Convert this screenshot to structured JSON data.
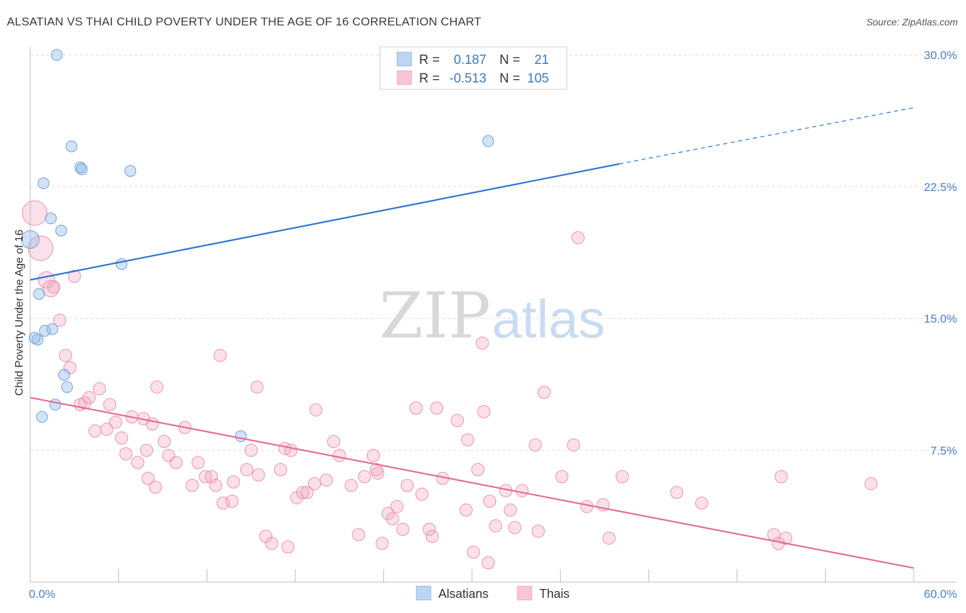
{
  "title": "ALSATIAN VS THAI CHILD POVERTY UNDER THE AGE OF 16 CORRELATION CHART",
  "source": "Source: ZipAtlas.com",
  "watermark": {
    "zip": "ZIP",
    "atlas": "atlas"
  },
  "legend": {
    "rows": [
      {
        "r_label": "R =",
        "r_value": "0.187",
        "n_label": "N =",
        "n_value": "21",
        "color": "#8fb8e8"
      },
      {
        "r_label": "R =",
        "r_value": "-0.513",
        "n_label": "N =",
        "n_value": "105",
        "color": "#f2a7c0"
      }
    ]
  },
  "bottom_legend": [
    {
      "label": "Alsatians",
      "color": "#8fb8e8"
    },
    {
      "label": "Thais",
      "color": "#f2a7c0"
    }
  ],
  "chart_data": {
    "type": "scatter",
    "title": "ALSATIAN VS THAI CHILD POVERTY UNDER THE AGE OF 16 CORRELATION CHART",
    "xlabel": "",
    "ylabel": "Child Poverty Under the Age of 16",
    "xlim": [
      0,
      60
    ],
    "ylim": [
      0,
      30
    ],
    "x_tick_labels": [
      "0.0%",
      "60.0%"
    ],
    "y_ticks": [
      7.5,
      15.0,
      22.5,
      30.0
    ],
    "y_tick_labels": [
      "7.5%",
      "15.0%",
      "22.5%",
      "30.0%"
    ],
    "grid": true,
    "legend_position": "top-center",
    "series": [
      {
        "name": "Alsatians",
        "color": "#8fb8e8",
        "line_color": "#2b74d0",
        "trend": {
          "x0": 0,
          "y0": 17.2,
          "x1": 40,
          "y1": 23.8,
          "x_dash_end": 60,
          "y_dash_end": 27.0
        },
        "points": [
          [
            1.8,
            30.0
          ],
          [
            2.8,
            24.8
          ],
          [
            3.4,
            23.6
          ],
          [
            3.5,
            23.5
          ],
          [
            6.8,
            23.4
          ],
          [
            0.9,
            22.7
          ],
          [
            1.4,
            20.7
          ],
          [
            2.1,
            20.0
          ],
          [
            0.0,
            19.5
          ],
          [
            6.2,
            18.1
          ],
          [
            0.6,
            16.4
          ],
          [
            31.1,
            25.1
          ],
          [
            0.5,
            13.8
          ],
          [
            1.0,
            14.3
          ],
          [
            1.5,
            14.4
          ],
          [
            2.3,
            11.8
          ],
          [
            2.5,
            11.1
          ],
          [
            1.7,
            10.1
          ],
          [
            0.8,
            9.4
          ],
          [
            14.3,
            8.3
          ],
          [
            0.3,
            13.9
          ]
        ]
      },
      {
        "name": "Thais",
        "color": "#f2a7c0",
        "line_color": "#e56b97",
        "trend": {
          "x0": 0,
          "y0": 10.5,
          "x1": 60,
          "y1": 0.8
        },
        "points": [
          [
            0.3,
            21.0
          ],
          [
            0.7,
            19.0
          ],
          [
            1.1,
            17.2
          ],
          [
            1.4,
            16.7
          ],
          [
            1.6,
            16.8
          ],
          [
            3.0,
            17.4
          ],
          [
            2.0,
            14.9
          ],
          [
            2.4,
            12.9
          ],
          [
            2.7,
            12.2
          ],
          [
            3.4,
            10.1
          ],
          [
            3.7,
            10.2
          ],
          [
            4.0,
            10.5
          ],
          [
            4.7,
            11.0
          ],
          [
            5.4,
            10.1
          ],
          [
            4.4,
            8.6
          ],
          [
            5.2,
            8.7
          ],
          [
            5.8,
            9.1
          ],
          [
            6.9,
            9.4
          ],
          [
            7.7,
            9.3
          ],
          [
            6.2,
            8.2
          ],
          [
            6.5,
            7.3
          ],
          [
            7.9,
            7.5
          ],
          [
            7.3,
            6.8
          ],
          [
            8.6,
            11.1
          ],
          [
            9.1,
            8.0
          ],
          [
            9.4,
            7.2
          ],
          [
            8.3,
            9.0
          ],
          [
            10.5,
            8.8
          ],
          [
            9.9,
            6.8
          ],
          [
            11.4,
            6.8
          ],
          [
            8.0,
            5.9
          ],
          [
            8.5,
            5.4
          ],
          [
            11.0,
            5.5
          ],
          [
            11.9,
            6.0
          ],
          [
            12.3,
            6.0
          ],
          [
            12.6,
            5.5
          ],
          [
            12.9,
            12.9
          ],
          [
            13.1,
            4.5
          ],
          [
            13.7,
            4.6
          ],
          [
            13.8,
            5.7
          ],
          [
            14.7,
            6.4
          ],
          [
            15.0,
            7.5
          ],
          [
            15.5,
            6.1
          ],
          [
            15.4,
            11.1
          ],
          [
            16.0,
            2.6
          ],
          [
            16.4,
            2.2
          ],
          [
            17.0,
            6.4
          ],
          [
            17.3,
            7.6
          ],
          [
            17.7,
            7.5
          ],
          [
            18.1,
            4.8
          ],
          [
            17.5,
            2.0
          ],
          [
            18.5,
            5.1
          ],
          [
            18.8,
            5.1
          ],
          [
            19.4,
            9.8
          ],
          [
            19.3,
            5.6
          ],
          [
            20.1,
            5.8
          ],
          [
            20.6,
            8.0
          ],
          [
            21.0,
            7.2
          ],
          [
            21.8,
            5.5
          ],
          [
            22.3,
            2.7
          ],
          [
            22.7,
            6.0
          ],
          [
            23.3,
            7.2
          ],
          [
            23.6,
            6.2
          ],
          [
            23.9,
            2.2
          ],
          [
            24.3,
            3.9
          ],
          [
            24.6,
            3.6
          ],
          [
            24.9,
            4.3
          ],
          [
            25.3,
            3.0
          ],
          [
            23.5,
            6.4
          ],
          [
            25.6,
            5.5
          ],
          [
            26.2,
            9.9
          ],
          [
            26.6,
            5.0
          ],
          [
            27.1,
            3.0
          ],
          [
            27.3,
            2.6
          ],
          [
            27.6,
            9.9
          ],
          [
            28.0,
            5.9
          ],
          [
            29.0,
            9.2
          ],
          [
            29.7,
            8.1
          ],
          [
            29.6,
            4.1
          ],
          [
            30.1,
            1.7
          ],
          [
            30.4,
            6.4
          ],
          [
            30.8,
            9.7
          ],
          [
            31.1,
            1.1
          ],
          [
            31.2,
            4.6
          ],
          [
            31.6,
            3.2
          ],
          [
            30.7,
            13.6
          ],
          [
            32.3,
            5.2
          ],
          [
            32.6,
            4.1
          ],
          [
            32.9,
            3.1
          ],
          [
            33.4,
            5.2
          ],
          [
            34.3,
            7.8
          ],
          [
            34.5,
            2.9
          ],
          [
            34.9,
            10.8
          ],
          [
            36.1,
            6.0
          ],
          [
            36.9,
            7.8
          ],
          [
            37.2,
            19.6
          ],
          [
            37.8,
            4.3
          ],
          [
            38.9,
            4.4
          ],
          [
            39.3,
            2.5
          ],
          [
            40.2,
            6.0
          ],
          [
            43.9,
            5.1
          ],
          [
            45.6,
            4.5
          ],
          [
            50.5,
            2.7
          ],
          [
            50.8,
            2.2
          ],
          [
            51.3,
            2.5
          ],
          [
            51.0,
            6.0
          ],
          [
            57.1,
            5.6
          ]
        ]
      }
    ]
  }
}
